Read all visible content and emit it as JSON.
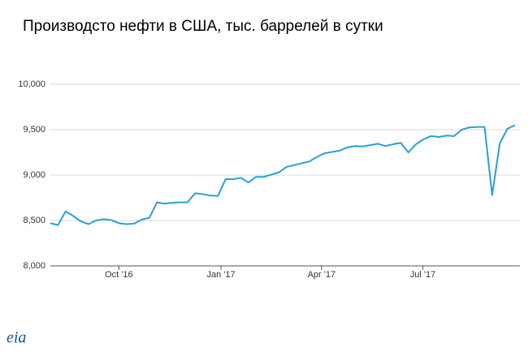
{
  "chart_data": {
    "type": "line",
    "title": "Производсто нефти в США, тыс. баррелей в сутки",
    "logo": "eia",
    "x": [
      0,
      1,
      2,
      3,
      4,
      5,
      6,
      7,
      8,
      9,
      10,
      11,
      12,
      13,
      14,
      15,
      16,
      17,
      18,
      19,
      20,
      21,
      22,
      23,
      24,
      25,
      26,
      27,
      28,
      29,
      30,
      31,
      32,
      33,
      34,
      35,
      36,
      37,
      38,
      39,
      40,
      41,
      42,
      43,
      44,
      45,
      46,
      47,
      48,
      49,
      50,
      51,
      52,
      53,
      54,
      55,
      56,
      57,
      58,
      59,
      60,
      61
    ],
    "series": [
      {
        "color": "#2a9fd6",
        "values": [
          8470,
          8450,
          8600,
          8550,
          8490,
          8460,
          8500,
          8515,
          8505,
          8470,
          8460,
          8465,
          8510,
          8530,
          8700,
          8685,
          8695,
          8700,
          8700,
          8800,
          8790,
          8775,
          8770,
          8955,
          8955,
          8970,
          8920,
          8980,
          8980,
          9005,
          9030,
          9090,
          9110,
          9130,
          9150,
          9200,
          9240,
          9255,
          9270,
          9305,
          9320,
          9315,
          9330,
          9345,
          9320,
          9340,
          9355,
          9250,
          9340,
          9395,
          9430,
          9420,
          9435,
          9430,
          9500,
          9525,
          9530,
          9530,
          8780,
          9350,
          9510,
          9550
        ]
      }
    ],
    "xlim": [
      0,
      61
    ],
    "xticks": [
      {
        "value": 9,
        "label": "Oct '16"
      },
      {
        "value": 22.4,
        "label": "Jan '17"
      },
      {
        "value": 35.6,
        "label": "Apr '17"
      },
      {
        "value": 48.9,
        "label": "Jul '17"
      }
    ],
    "ylim": [
      8000,
      10000
    ],
    "yticks": [
      {
        "value": 8000,
        "label": "8,000"
      },
      {
        "value": 8500,
        "label": "8,500"
      },
      {
        "value": 9000,
        "label": "9,000"
      },
      {
        "value": 9500,
        "label": "9,500"
      },
      {
        "value": 10000,
        "label": "10,000"
      }
    ],
    "grid": true
  }
}
